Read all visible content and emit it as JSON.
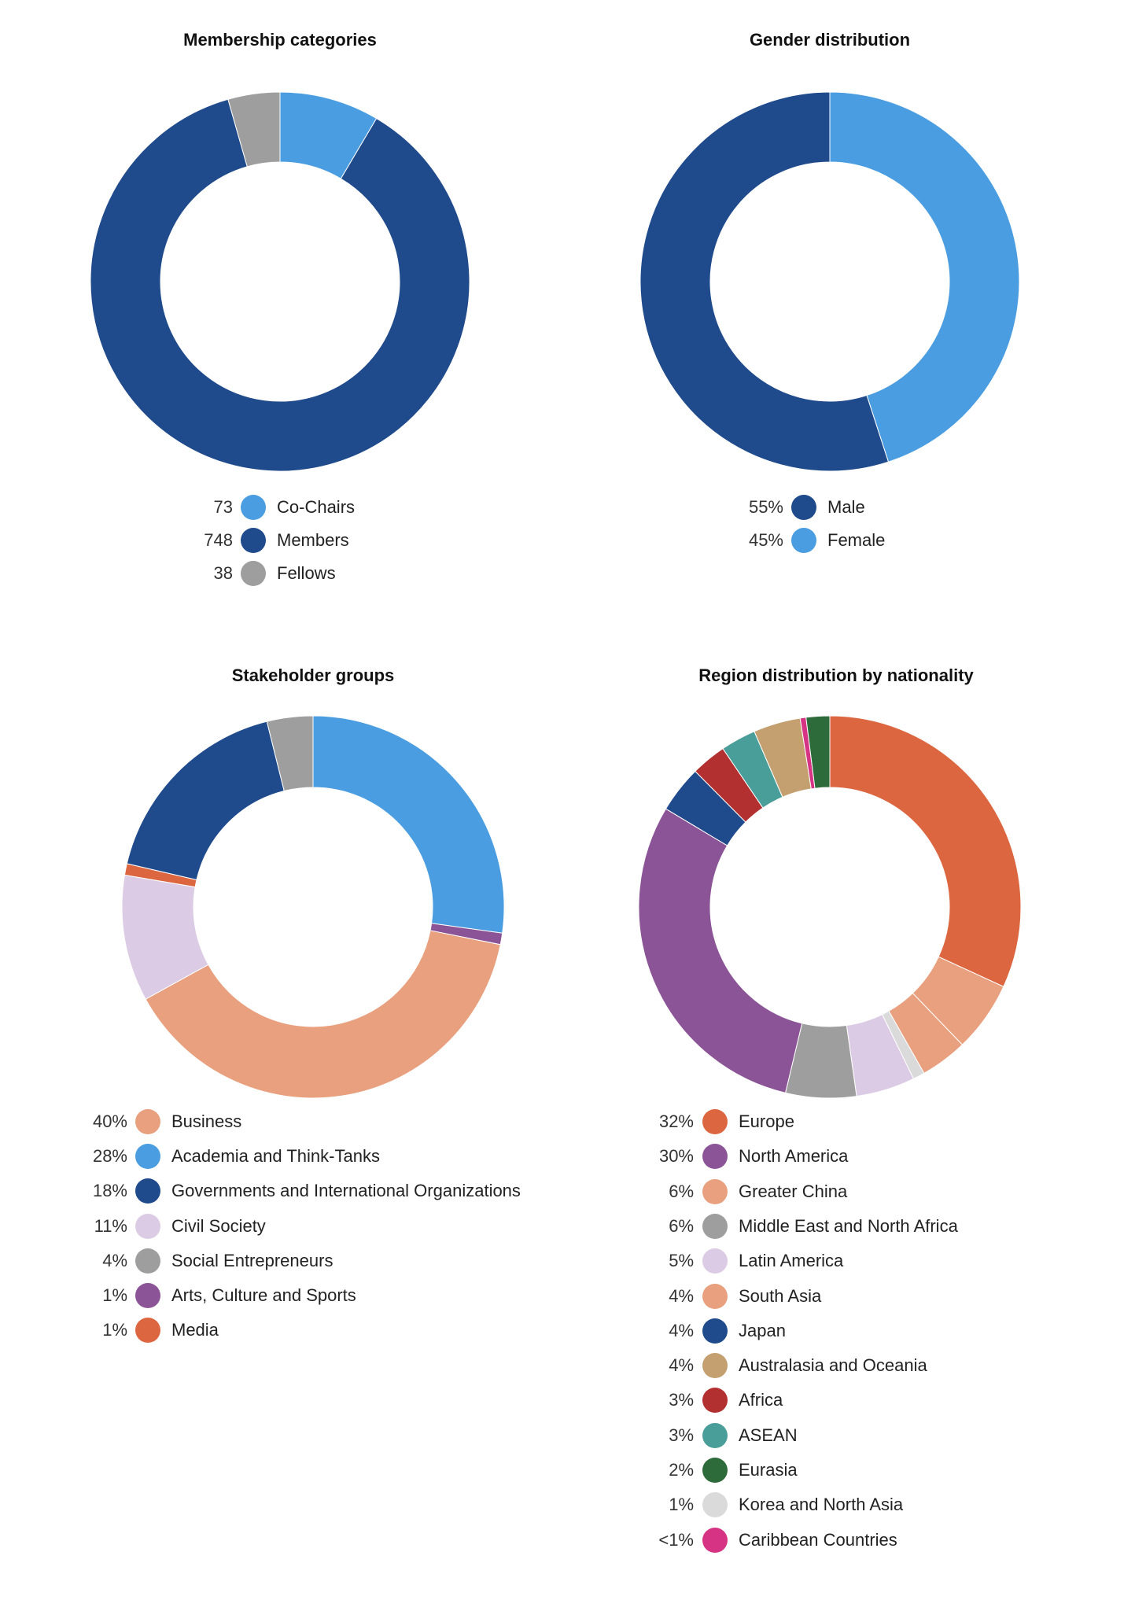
{
  "chart_data": [
    {
      "type": "pie",
      "title": "Membership categories",
      "categories": [
        "Co-Chairs",
        "Members",
        "Fellows"
      ],
      "values": [
        73,
        748,
        38
      ],
      "value_labels": [
        "73",
        "748",
        "38"
      ],
      "colors": [
        "#4A9DE0",
        "#1F4A8C",
        "#9E9E9E"
      ]
    },
    {
      "type": "pie",
      "title": "Gender distribution",
      "categories": [
        "Male",
        "Female"
      ],
      "values": [
        55,
        45
      ],
      "value_labels": [
        "55%",
        "45%"
      ],
      "colors": [
        "#1F4A8C",
        "#4A9DE0"
      ],
      "legend_order": [
        0,
        1
      ],
      "draw_order": [
        1,
        0
      ]
    },
    {
      "type": "pie",
      "title": "Stakeholder groups",
      "categories": [
        "Business",
        "Academia and Think-Tanks",
        "Governments and International Organizations",
        "Civil Society",
        "Social Entrepreneurs",
        "Arts, Culture and Sports",
        "Media"
      ],
      "values": [
        40,
        28,
        18,
        11,
        4,
        1,
        1
      ],
      "value_labels": [
        "40%",
        "28%",
        "18%",
        "11%",
        "4%",
        "1%",
        "1%"
      ],
      "colors": [
        "#E8A07E",
        "#4A9DE0",
        "#1F4A8C",
        "#DCCBE4",
        "#9E9E9E",
        "#8B5496",
        "#DC6640"
      ]
    },
    {
      "type": "pie",
      "title": "Region distribution by nationality",
      "categories": [
        "Europe",
        "North America",
        "Greater China",
        "Middle East and North Africa",
        "Latin America",
        "South Asia",
        "Japan",
        "Australasia and Oceania",
        "Africa",
        "ASEAN",
        "Eurasia",
        "Korea and North Asia",
        "Caribbean Countries"
      ],
      "values": [
        32,
        30,
        6,
        6,
        5,
        4,
        4,
        4,
        3,
        3,
        2,
        1,
        0.5
      ],
      "value_labels": [
        "32%",
        "30%",
        "6%",
        "6%",
        "5%",
        "4%",
        "4%",
        "4%",
        "3%",
        "3%",
        "2%",
        "1%",
        "<1%"
      ],
      "colors": [
        "#DC6640",
        "#8B5496",
        "#E8A07E",
        "#9E9E9E",
        "#DCCBE4",
        "#E8A07E",
        "#1F4A8C",
        "#C4A070",
        "#B33030",
        "#4A9E9A",
        "#2E6B3A",
        "#DADADA",
        "#D63384"
      ]
    }
  ]
}
